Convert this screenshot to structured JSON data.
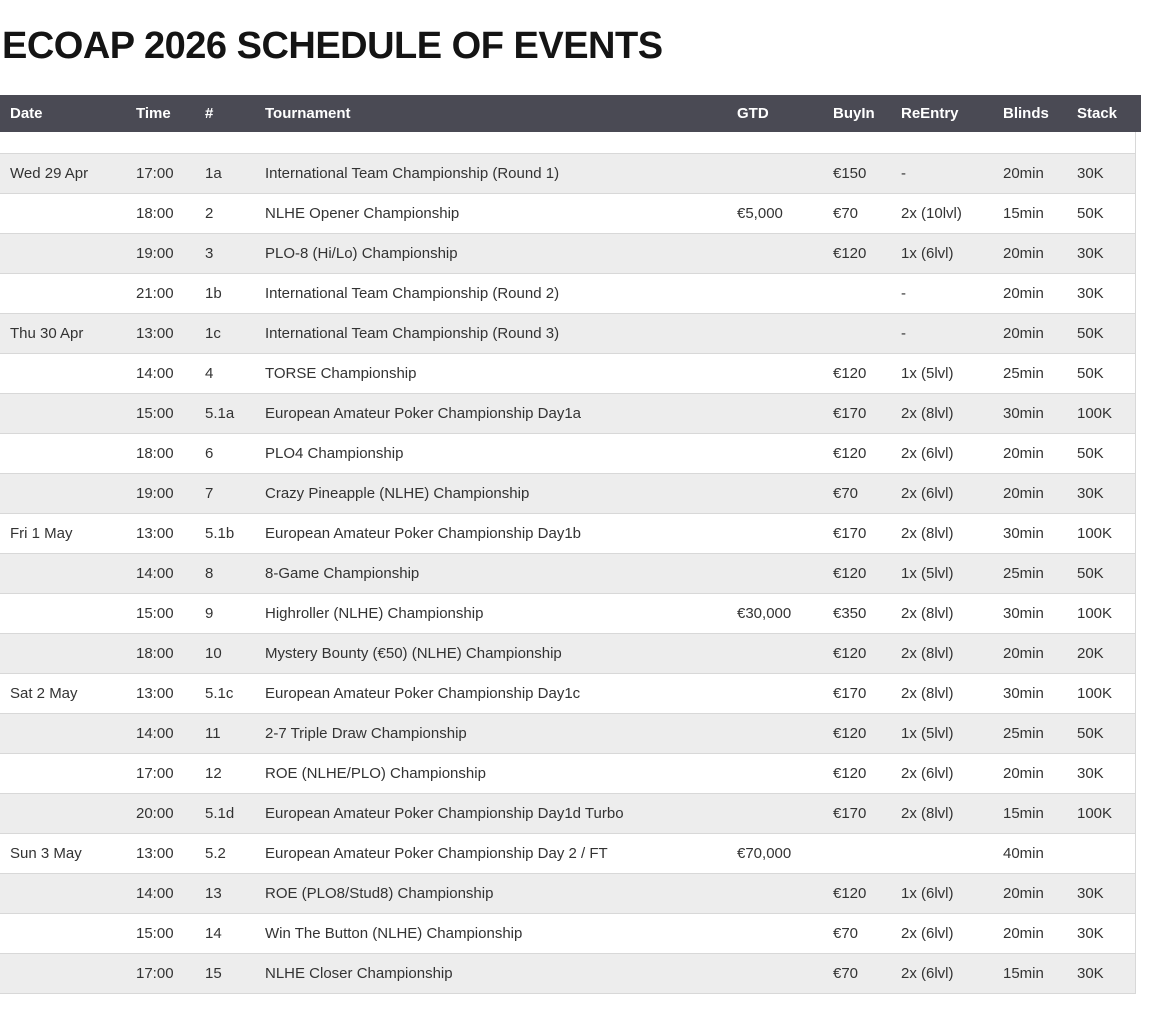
{
  "page": {
    "title": "ECOAP 2026 SCHEDULE OF EVENTS"
  },
  "colors": {
    "header_bg": "#4a4a54",
    "header_text": "#ffffff",
    "row_alt_bg": "#ededed",
    "row_bg": "#ffffff",
    "border": "#d8d8d8",
    "body_text": "#333333",
    "title_text": "#141414"
  },
  "table": {
    "columns": [
      {
        "key": "date",
        "label": "Date"
      },
      {
        "key": "time",
        "label": "Time"
      },
      {
        "key": "num",
        "label": "#"
      },
      {
        "key": "tournament",
        "label": "Tournament"
      },
      {
        "key": "gtd",
        "label": "GTD"
      },
      {
        "key": "buyin",
        "label": "BuyIn"
      },
      {
        "key": "reentry",
        "label": "ReEntry"
      },
      {
        "key": "blinds",
        "label": "Blinds"
      },
      {
        "key": "stack",
        "label": "Stack"
      }
    ],
    "rows": [
      {
        "date": "Wed 29 Apr",
        "time": "17:00",
        "num": "1a",
        "tournament": "International Team Championship (Round 1)",
        "gtd": "",
        "buyin": "€150",
        "reentry": "-",
        "blinds": "20min",
        "stack": "30K"
      },
      {
        "date": "",
        "time": "18:00",
        "num": "2",
        "tournament": "NLHE Opener Championship",
        "gtd": "€5,000",
        "buyin": "€70",
        "reentry": "2x (10lvl)",
        "blinds": "15min",
        "stack": "50K"
      },
      {
        "date": "",
        "time": "19:00",
        "num": "3",
        "tournament": "PLO-8 (Hi/Lo) Championship",
        "gtd": "",
        "buyin": "€120",
        "reentry": "1x (6lvl)",
        "blinds": "20min",
        "stack": "30K"
      },
      {
        "date": "",
        "time": "21:00",
        "num": "1b",
        "tournament": "International Team Championship (Round 2)",
        "gtd": "",
        "buyin": "",
        "reentry": "-",
        "blinds": "20min",
        "stack": "30K"
      },
      {
        "date": "Thu 30 Apr",
        "time": "13:00",
        "num": "1c",
        "tournament": "International Team Championship (Round 3)",
        "gtd": "",
        "buyin": "",
        "reentry": "-",
        "blinds": "20min",
        "stack": "50K"
      },
      {
        "date": "",
        "time": "14:00",
        "num": "4",
        "tournament": "TORSE Championship",
        "gtd": "",
        "buyin": "€120",
        "reentry": "1x (5lvl)",
        "blinds": "25min",
        "stack": "50K"
      },
      {
        "date": "",
        "time": "15:00",
        "num": "5.1a",
        "tournament": "European Amateur Poker Championship Day1a",
        "gtd": "",
        "buyin": "€170",
        "reentry": "2x (8lvl)",
        "blinds": "30min",
        "stack": "100K"
      },
      {
        "date": "",
        "time": "18:00",
        "num": "6",
        "tournament": "PLO4 Championship",
        "gtd": "",
        "buyin": "€120",
        "reentry": "2x (6lvl)",
        "blinds": "20min",
        "stack": "50K"
      },
      {
        "date": "",
        "time": "19:00",
        "num": "7",
        "tournament": "Crazy Pineapple (NLHE) Championship",
        "gtd": "",
        "buyin": "€70",
        "reentry": "2x (6lvl)",
        "blinds": "20min",
        "stack": "30K"
      },
      {
        "date": "Fri 1 May",
        "time": "13:00",
        "num": "5.1b",
        "tournament": "European Amateur Poker Championship Day1b",
        "gtd": "",
        "buyin": "€170",
        "reentry": "2x (8lvl)",
        "blinds": "30min",
        "stack": "100K"
      },
      {
        "date": "",
        "time": "14:00",
        "num": "8",
        "tournament": "8-Game Championship",
        "gtd": "",
        "buyin": "€120",
        "reentry": "1x (5lvl)",
        "blinds": "25min",
        "stack": "50K"
      },
      {
        "date": "",
        "time": "15:00",
        "num": "9",
        "tournament": "Highroller (NLHE) Championship",
        "gtd": "€30,000",
        "buyin": "€350",
        "reentry": "2x (8lvl)",
        "blinds": "30min",
        "stack": "100K"
      },
      {
        "date": "",
        "time": "18:00",
        "num": "10",
        "tournament": "Mystery Bounty (€50) (NLHE) Championship",
        "gtd": "",
        "buyin": "€120",
        "reentry": "2x (8lvl)",
        "blinds": "20min",
        "stack": "20K"
      },
      {
        "date": "Sat 2 May",
        "time": "13:00",
        "num": "5.1c",
        "tournament": "European Amateur Poker Championship Day1c",
        "gtd": "",
        "buyin": "€170",
        "reentry": "2x (8lvl)",
        "blinds": "30min",
        "stack": "100K"
      },
      {
        "date": "",
        "time": "14:00",
        "num": "11",
        "tournament": "2-7 Triple Draw Championship",
        "gtd": "",
        "buyin": "€120",
        "reentry": "1x (5lvl)",
        "blinds": "25min",
        "stack": "50K"
      },
      {
        "date": "",
        "time": "17:00",
        "num": "12",
        "tournament": "ROE (NLHE/PLO) Championship",
        "gtd": "",
        "buyin": "€120",
        "reentry": "2x (6lvl)",
        "blinds": "20min",
        "stack": "30K"
      },
      {
        "date": "",
        "time": "20:00",
        "num": "5.1d",
        "tournament": "European Amateur Poker Championship Day1d Turbo",
        "gtd": "",
        "buyin": "€170",
        "reentry": "2x (8lvl)",
        "blinds": "15min",
        "stack": "100K"
      },
      {
        "date": "Sun 3 May",
        "time": "13:00",
        "num": "5.2",
        "tournament": "European Amateur Poker Championship Day 2 / FT",
        "gtd": "€70,000",
        "buyin": "",
        "reentry": "",
        "blinds": "40min",
        "stack": ""
      },
      {
        "date": "",
        "time": "14:00",
        "num": "13",
        "tournament": "ROE (PLO8/Stud8) Championship",
        "gtd": "",
        "buyin": "€120",
        "reentry": "1x (6lvl)",
        "blinds": "20min",
        "stack": "30K"
      },
      {
        "date": "",
        "time": "15:00",
        "num": "14",
        "tournament": "Win The Button (NLHE) Championship",
        "gtd": "",
        "buyin": "€70",
        "reentry": "2x (6lvl)",
        "blinds": "20min",
        "stack": "30K"
      },
      {
        "date": "",
        "time": "17:00",
        "num": "15",
        "tournament": "NLHE Closer Championship",
        "gtd": "",
        "buyin": "€70",
        "reentry": "2x (6lvl)",
        "blinds": "15min",
        "stack": "30K"
      }
    ]
  }
}
